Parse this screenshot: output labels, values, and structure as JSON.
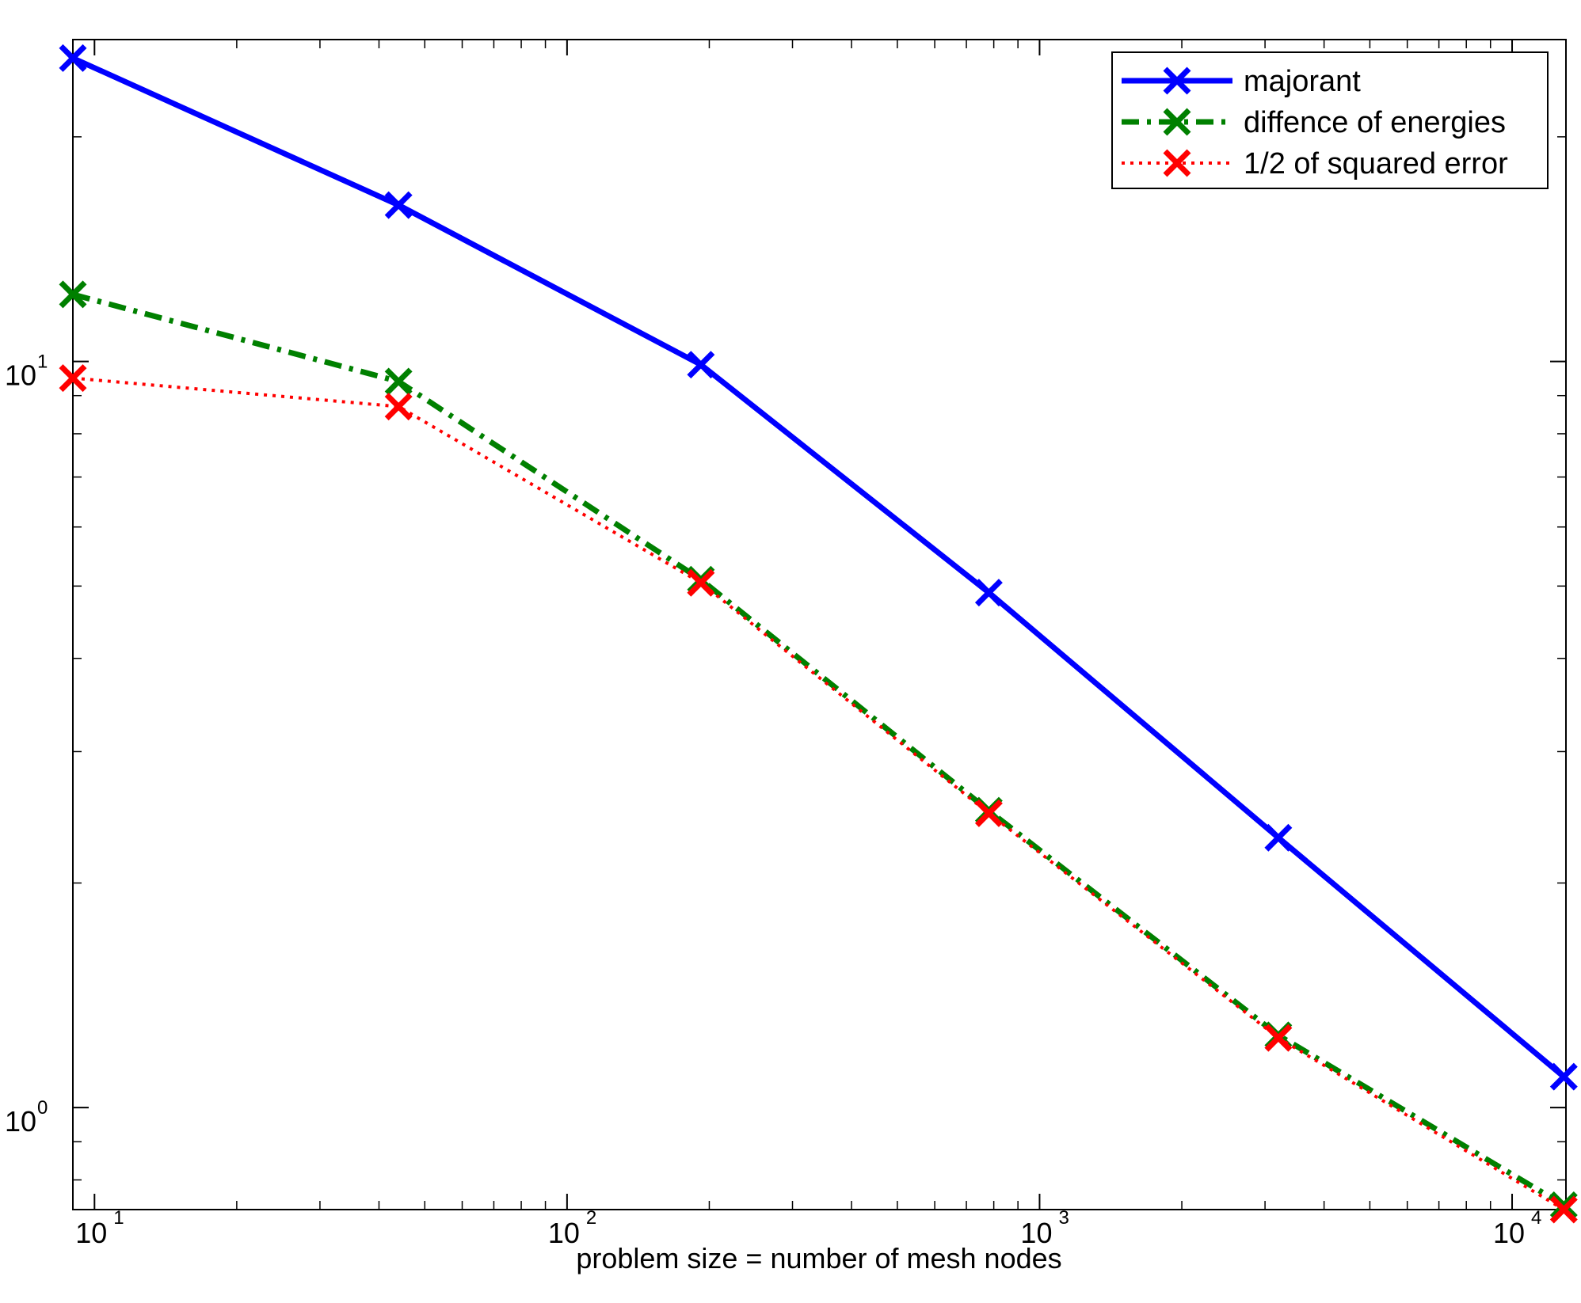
{
  "chart_data": {
    "type": "line",
    "title": "",
    "xlabel": "problem size = number of mesh nodes",
    "ylabel": "",
    "xscale": "log",
    "yscale": "log",
    "xlim": [
      9,
      13000
    ],
    "ylim": [
      0.73,
      27
    ],
    "grid": false,
    "legend_position": "top-right",
    "x_ticks": [
      {
        "value": 10,
        "base": "10",
        "exp": "1"
      },
      {
        "value": 100,
        "base": "10",
        "exp": "2"
      },
      {
        "value": 1000,
        "base": "10",
        "exp": "3"
      },
      {
        "value": 10000,
        "base": "10",
        "exp": "4"
      }
    ],
    "y_ticks": [
      {
        "value": 1,
        "base": "10",
        "exp": "0"
      },
      {
        "value": 10,
        "base": "10",
        "exp": "1"
      }
    ],
    "x": [
      9,
      44,
      192,
      781,
      3201,
      12865
    ],
    "series": [
      {
        "name": "majorant",
        "color": "#0000ff",
        "dash": "solid",
        "values": [
          25.5,
          16.2,
          9.9,
          4.9,
          2.3,
          1.1
        ]
      },
      {
        "name": "diffence of energies",
        "color": "#008000",
        "dash": "dashdot",
        "values": [
          12.3,
          9.4,
          5.1,
          2.5,
          1.25,
          0.74
        ]
      },
      {
        "name": "1/2 of squared error",
        "color": "#ff0000",
        "dash": "dotted",
        "values": [
          9.5,
          8.7,
          5.05,
          2.48,
          1.24,
          0.73
        ]
      }
    ]
  }
}
